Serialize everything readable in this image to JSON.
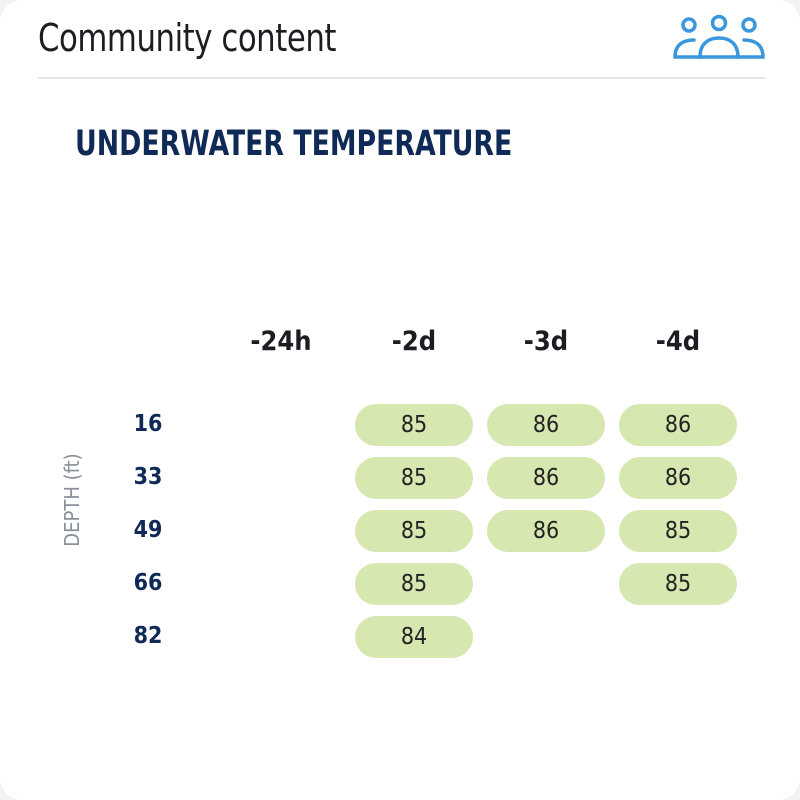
{
  "header": {
    "title": "Community content",
    "icon": "community-people-icon",
    "icon_color": "#3b97dd"
  },
  "widget": {
    "title": "UNDERWATER TEMPERATURE",
    "axis_label": "DEPTH (ft)",
    "columns": [
      "-24h",
      "-2d",
      "-3d",
      "-4d"
    ],
    "rows": [
      {
        "depth": "16",
        "values": [
          null,
          "85",
          "86",
          "86"
        ]
      },
      {
        "depth": "33",
        "values": [
          null,
          "85",
          "86",
          "86"
        ]
      },
      {
        "depth": "49",
        "values": [
          null,
          "85",
          "86",
          "85"
        ]
      },
      {
        "depth": "66",
        "values": [
          null,
          "85",
          null,
          "85"
        ]
      },
      {
        "depth": "82",
        "values": [
          null,
          "84",
          null,
          null
        ]
      }
    ],
    "cell_color": "#d6e7b0"
  }
}
